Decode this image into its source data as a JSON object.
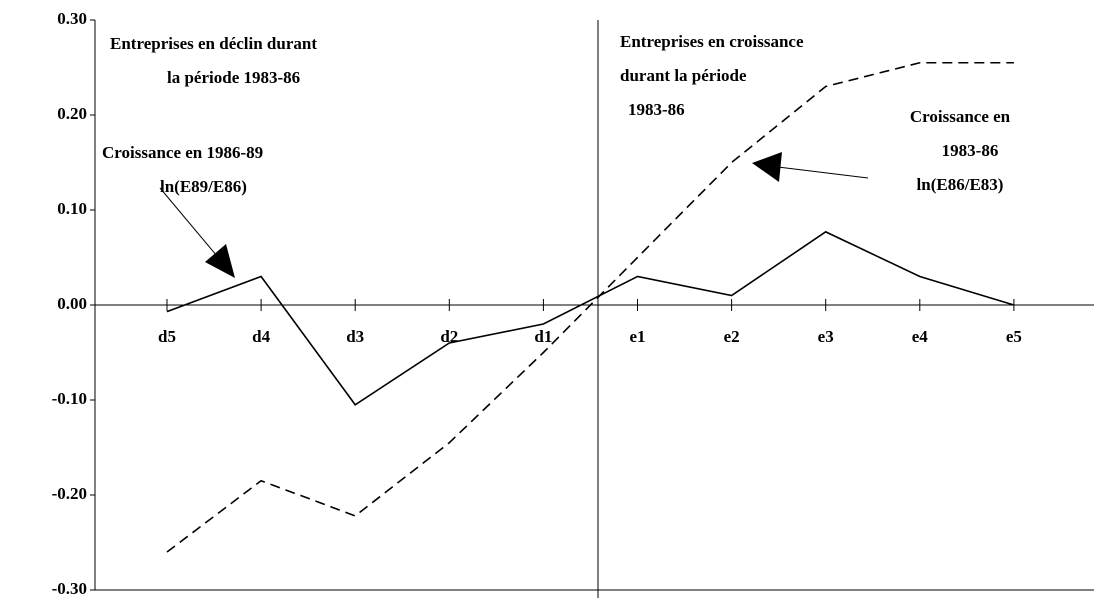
{
  "chart_data": {
    "type": "line",
    "categories": [
      "d5",
      "d4",
      "d3",
      "d2",
      "d1",
      "e1",
      "e2",
      "e3",
      "e4",
      "e5"
    ],
    "series": [
      {
        "color": "#000000",
        "dashed": false,
        "values": [
          -0.007,
          0.03,
          -0.105,
          -0.04,
          -0.02,
          0.03,
          0.01,
          0.077,
          0.03,
          0.0
        ]
      },
      {
        "color": "#000000",
        "dashed": true,
        "values": [
          -0.26,
          -0.185,
          -0.222,
          -0.145,
          -0.05,
          0.05,
          0.15,
          0.23,
          0.255,
          0.255
        ]
      }
    ],
    "ylim": [
      -0.3,
      0.3
    ],
    "yticks": [
      {
        "value": 0.3,
        "label": "0.30"
      },
      {
        "value": 0.2,
        "label": "0.20"
      },
      {
        "value": 0.1,
        "label": "0.10"
      },
      {
        "value": 0.0,
        "label": "0.00"
      },
      {
        "value": -0.1,
        "label": "-0.10"
      },
      {
        "value": -0.2,
        "label": "-0.20"
      },
      {
        "value": -0.3,
        "label": "-0.30"
      }
    ],
    "annotations": [
      {
        "lines": [
          "Entreprises en déclin durant",
          "la période 1983-86"
        ]
      },
      {
        "lines": [
          "Entreprises en croissance",
          "durant la période",
          "1983-86"
        ]
      },
      {
        "lines": [
          "Croissance en 1986-89",
          "ln(E89/E86)"
        ]
      },
      {
        "lines": [
          "Croissance en",
          "1983-86",
          "ln(E86/E83)"
        ]
      }
    ]
  }
}
